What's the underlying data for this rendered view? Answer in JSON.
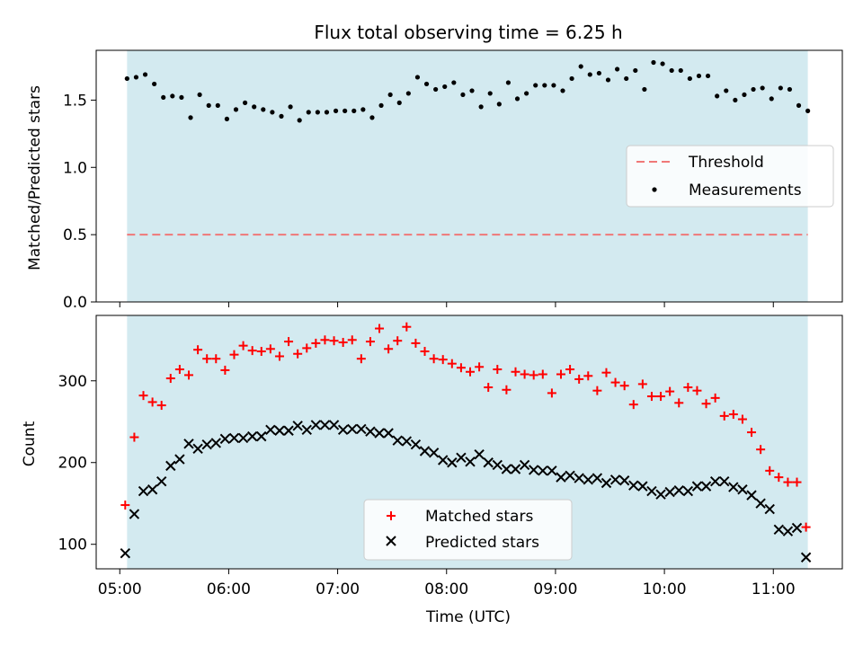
{
  "figure": {
    "title": "Flux total observing time = 6.25 h",
    "xlabel": "Time (UTC)",
    "x_ticks": [
      "05:00",
      "06:00",
      "07:00",
      "08:00",
      "09:00",
      "10:00",
      "11:00"
    ],
    "shade_color": "#d3eaf0",
    "shade_range": [
      "05:04",
      "11:19"
    ]
  },
  "chart_data": [
    {
      "type": "scatter",
      "panel": "top",
      "ylabel": "Matched/Predicted stars",
      "xlim": [
        "04:47",
        "11:38"
      ],
      "ylim": [
        0.0,
        1.87
      ],
      "y_ticks": [
        "0.0",
        "0.5",
        "1.0",
        "1.5"
      ],
      "grid": false,
      "legend_position": "center-right",
      "threshold": {
        "name": "Threshold",
        "value": 0.5,
        "color": "#f07878",
        "style": "dashed"
      },
      "series": [
        {
          "name": "Measurements",
          "marker": "dot",
          "color": "#000000",
          "x": [
            "05:04",
            "05:09",
            "05:14",
            "05:19",
            "05:24",
            "05:29",
            "05:34",
            "05:39",
            "05:44",
            "05:49",
            "05:54",
            "05:59",
            "06:04",
            "06:09",
            "06:14",
            "06:19",
            "06:24",
            "06:29",
            "06:34",
            "06:39",
            "06:44",
            "06:49",
            "06:54",
            "06:59",
            "07:04",
            "07:09",
            "07:14",
            "07:19",
            "07:24",
            "07:29",
            "07:34",
            "07:39",
            "07:44",
            "07:49",
            "07:54",
            "07:59",
            "08:04",
            "08:09",
            "08:14",
            "08:19",
            "08:24",
            "08:29",
            "08:34",
            "08:39",
            "08:44",
            "08:49",
            "08:54",
            "08:59",
            "09:04",
            "09:09",
            "09:14",
            "09:19",
            "09:24",
            "09:29",
            "09:34",
            "09:39",
            "09:44",
            "09:49",
            "09:54",
            "09:59",
            "10:04",
            "10:09",
            "10:14",
            "10:19",
            "10:24",
            "10:29",
            "10:34",
            "10:39",
            "10:44",
            "10:49",
            "10:54",
            "10:59",
            "11:04",
            "11:09",
            "11:14",
            "11:19"
          ],
          "y": [
            1.66,
            1.67,
            1.69,
            1.62,
            1.52,
            1.53,
            1.52,
            1.37,
            1.54,
            1.46,
            1.46,
            1.36,
            1.43,
            1.48,
            1.45,
            1.43,
            1.41,
            1.38,
            1.45,
            1.35,
            1.41,
            1.41,
            1.41,
            1.42,
            1.42,
            1.42,
            1.43,
            1.37,
            1.46,
            1.54,
            1.48,
            1.55,
            1.67,
            1.62,
            1.58,
            1.6,
            1.63,
            1.54,
            1.57,
            1.45,
            1.55,
            1.47,
            1.63,
            1.51,
            1.55,
            1.61,
            1.61,
            1.61,
            1.57,
            1.66,
            1.75,
            1.69,
            1.7,
            1.65,
            1.73,
            1.66,
            1.72,
            1.58,
            1.78,
            1.77,
            1.72,
            1.72,
            1.66,
            1.68,
            1.68,
            1.53,
            1.57,
            1.5,
            1.54,
            1.58,
            1.59,
            1.51,
            1.59,
            1.58,
            1.46,
            1.42
          ]
        }
      ]
    },
    {
      "type": "scatter",
      "panel": "bottom",
      "ylabel": "Count",
      "xlim": [
        "04:47",
        "11:38"
      ],
      "ylim": [
        70,
        380
      ],
      "y_ticks": [
        "100",
        "200",
        "300"
      ],
      "grid": false,
      "legend_position": "lower-center",
      "series": [
        {
          "name": "Matched stars",
          "marker": "plus",
          "color": "#ff0000",
          "x": [
            "05:03",
            "05:08",
            "05:13",
            "05:18",
            "05:23",
            "05:28",
            "05:33",
            "05:38",
            "05:43",
            "05:48",
            "05:53",
            "05:58",
            "06:03",
            "06:08",
            "06:13",
            "06:18",
            "06:23",
            "06:28",
            "06:33",
            "06:38",
            "06:43",
            "06:48",
            "06:53",
            "06:58",
            "07:03",
            "07:08",
            "07:13",
            "07:18",
            "07:23",
            "07:28",
            "07:33",
            "07:38",
            "07:43",
            "07:48",
            "07:53",
            "07:58",
            "08:03",
            "08:08",
            "08:13",
            "08:18",
            "08:23",
            "08:28",
            "08:33",
            "08:38",
            "08:43",
            "08:48",
            "08:53",
            "08:58",
            "09:03",
            "09:08",
            "09:13",
            "09:18",
            "09:23",
            "09:28",
            "09:33",
            "09:38",
            "09:43",
            "09:48",
            "09:53",
            "09:58",
            "10:03",
            "10:08",
            "10:13",
            "10:18",
            "10:23",
            "10:28",
            "10:33",
            "10:38",
            "10:43",
            "10:48",
            "10:53",
            "10:58",
            "11:03",
            "11:08",
            "11:13",
            "11:18"
          ],
          "y": [
            148,
            231,
            282,
            274,
            270,
            303,
            314,
            307,
            338,
            327,
            327,
            313,
            332,
            343,
            337,
            336,
            339,
            330,
            348,
            333,
            340,
            346,
            350,
            349,
            347,
            350,
            327,
            348,
            364,
            339,
            349,
            366,
            346,
            336,
            327,
            326,
            321,
            316,
            311,
            317,
            292,
            314,
            289,
            311,
            308,
            307,
            308,
            285,
            308,
            314,
            302,
            306,
            288,
            310,
            298,
            294,
            271,
            296,
            281,
            281,
            287,
            273,
            292,
            288,
            272,
            279,
            257,
            259,
            253,
            237,
            216,
            190,
            182,
            176,
            176,
            121
          ]
        },
        {
          "name": "Predicted stars",
          "marker": "x",
          "color": "#000000",
          "x": [
            "05:03",
            "05:08",
            "05:13",
            "05:18",
            "05:23",
            "05:28",
            "05:33",
            "05:38",
            "05:43",
            "05:48",
            "05:53",
            "05:58",
            "06:03",
            "06:08",
            "06:13",
            "06:18",
            "06:23",
            "06:28",
            "06:33",
            "06:38",
            "06:43",
            "06:48",
            "06:53",
            "06:58",
            "07:03",
            "07:08",
            "07:13",
            "07:18",
            "07:23",
            "07:28",
            "07:33",
            "07:38",
            "07:43",
            "07:48",
            "07:53",
            "07:58",
            "08:03",
            "08:08",
            "08:13",
            "08:18",
            "08:23",
            "08:28",
            "08:33",
            "08:38",
            "08:43",
            "08:48",
            "08:53",
            "08:58",
            "09:03",
            "09:08",
            "09:13",
            "09:18",
            "09:23",
            "09:28",
            "09:33",
            "09:38",
            "09:43",
            "09:48",
            "09:53",
            "09:58",
            "10:03",
            "10:08",
            "10:13",
            "10:18",
            "10:23",
            "10:28",
            "10:33",
            "10:38",
            "10:43",
            "10:48",
            "10:53",
            "10:58",
            "11:03",
            "11:08",
            "11:13",
            "11:18"
          ],
          "y": [
            89,
            137,
            165,
            167,
            177,
            196,
            204,
            223,
            217,
            222,
            224,
            229,
            230,
            230,
            232,
            232,
            240,
            239,
            239,
            245,
            240,
            246,
            246,
            246,
            240,
            241,
            241,
            238,
            236,
            236,
            227,
            226,
            222,
            214,
            212,
            203,
            200,
            206,
            201,
            210,
            200,
            197,
            192,
            192,
            197,
            191,
            190,
            190,
            182,
            184,
            181,
            179,
            181,
            175,
            179,
            178,
            172,
            171,
            165,
            161,
            164,
            166,
            165,
            171,
            171,
            177,
            177,
            170,
            167,
            160,
            150,
            143,
            118,
            116,
            120,
            84
          ]
        }
      ]
    }
  ]
}
